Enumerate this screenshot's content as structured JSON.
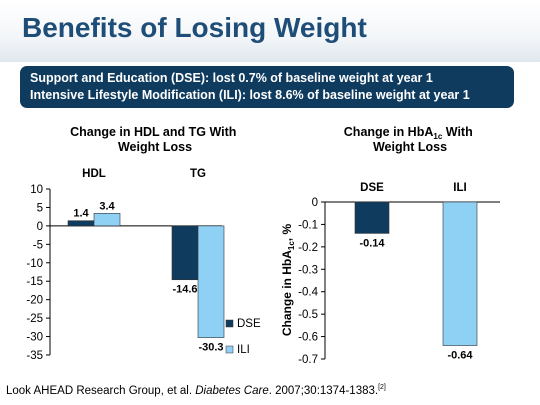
{
  "title": "Benefits of Losing Weight",
  "banner": {
    "line1": "Support and Education (DSE): lost 0.7% of baseline weight at year 1",
    "line2": "Intensive Lifestyle Modification (ILI): lost 8.6% of baseline weight at year 1"
  },
  "colors": {
    "DSE": "#0f3b5f",
    "ILI": "#8fd0f5",
    "title": "#1e4d78"
  },
  "chart_data": [
    {
      "type": "bar",
      "title": "Change in HDL and TG With Weight Loss",
      "categories": [
        "HDL",
        "TG"
      ],
      "series": [
        {
          "name": "DSE",
          "values": [
            1.4,
            -14.6
          ]
        },
        {
          "name": "ILI",
          "values": [
            3.4,
            -30.3
          ]
        }
      ],
      "ylim": [
        -35,
        10
      ],
      "yticks": [
        10,
        5,
        0,
        -5,
        -10,
        -15,
        -20,
        -25,
        -30,
        -35
      ],
      "legend": "bottom-right"
    },
    {
      "type": "bar",
      "title_main": "Change in HbA",
      "title_sub": "1c",
      "title_rest": " With",
      "title_line2": "Weight Loss",
      "categories": [
        "DSE",
        "ILI"
      ],
      "values": [
        -0.14,
        -0.64
      ],
      "ylabel": "Change in HbA1c, %",
      "ylim": [
        -0.7,
        0
      ],
      "yticks": [
        0,
        -0.1,
        -0.2,
        -0.3,
        -0.4,
        -0.5,
        -0.6,
        -0.7
      ]
    }
  ],
  "citation": {
    "authors": "Look AHEAD Research Group, et al. ",
    "journal": "Diabetes Care",
    "details": ". 2007;30:1374-1383.",
    "ref": "[2]"
  }
}
